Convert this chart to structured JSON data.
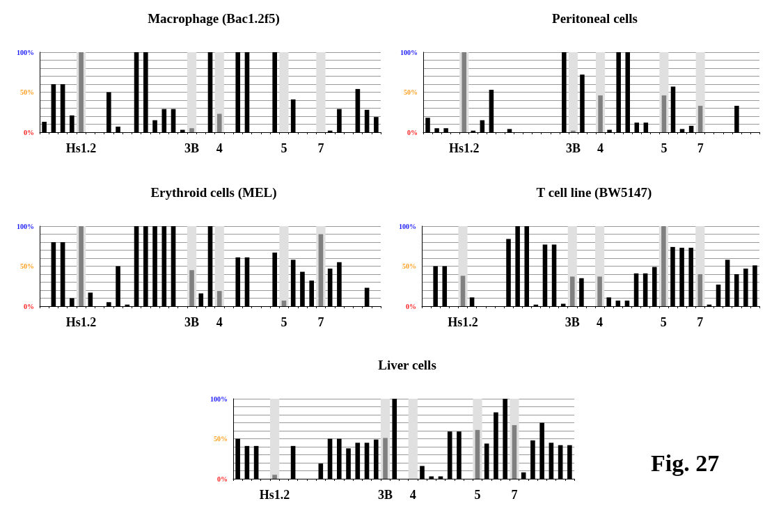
{
  "chart_data": [
    {
      "type": "bar",
      "title": "Macrophage (Bac1.2f5)",
      "categories": [
        null,
        null,
        null,
        null,
        "Hs1.2",
        null,
        null,
        null,
        null,
        null,
        null,
        null,
        null,
        null,
        null,
        null,
        "3B",
        null,
        null,
        "4",
        null,
        null,
        null,
        null,
        null,
        null,
        "5",
        null,
        null,
        null,
        "7",
        null,
        null,
        null,
        null,
        null,
        null
      ],
      "values": [
        13,
        60,
        60,
        21,
        100,
        0,
        0,
        50,
        7,
        0,
        100,
        100,
        15,
        29,
        29,
        3,
        5,
        0,
        100,
        23,
        0,
        100,
        100,
        0,
        0,
        100,
        0,
        41,
        0,
        0,
        0,
        2,
        29,
        0,
        54,
        28,
        19
      ],
      "colors": [
        "#000000",
        "#000000",
        "#000000",
        "#000000",
        "#808080",
        "#000000",
        "#000000",
        "#000000",
        "#000000",
        "#000000",
        "#000000",
        "#000000",
        "#000000",
        "#000000",
        "#000000",
        "#000000",
        "#808080",
        "#000000",
        "#000000",
        "#808080",
        "#000000",
        "#000000",
        "#000000",
        "#000000",
        "#000000",
        "#000000",
        "#808080",
        "#000000",
        "#000000",
        "#000000",
        "#808080",
        "#000000",
        "#000000",
        "#000000",
        "#000000",
        "#000000",
        "#000000"
      ],
      "ylim": [
        0,
        100
      ],
      "yticks": [
        {
          "value": 0,
          "label": "0%"
        },
        {
          "value": 10,
          "label": null
        },
        {
          "value": 20,
          "label": null
        },
        {
          "value": 30,
          "label": null
        },
        {
          "value": 40,
          "label": null
        },
        {
          "value": 50,
          "label": "50%"
        },
        {
          "value": 60,
          "label": null
        },
        {
          "value": 70,
          "label": null
        },
        {
          "value": 80,
          "label": null
        },
        {
          "value": 90,
          "label": null
        },
        {
          "value": 100,
          "label": "100%"
        }
      ],
      "grid": "y",
      "bands": [
        {
          "axis": "x",
          "from": "Hs1.2",
          "to": "Hs1.2",
          "color": "#e0e0e0"
        },
        {
          "axis": "x",
          "from": "3B",
          "to": "3B",
          "color": "#e0e0e0"
        },
        {
          "axis": "x",
          "from": "4",
          "to": "4",
          "color": "#e0e0e0"
        },
        {
          "axis": "x",
          "from": "5",
          "to": "5",
          "color": "#e0e0e0"
        },
        {
          "axis": "x",
          "from": "7",
          "to": "7",
          "color": "#e0e0e0"
        }
      ]
    },
    {
      "type": "bar",
      "title": "Peritoneal cells",
      "categories": [
        null,
        null,
        null,
        null,
        "Hs1.2",
        null,
        null,
        null,
        null,
        null,
        null,
        null,
        null,
        null,
        null,
        null,
        "3B",
        null,
        null,
        "4",
        null,
        null,
        null,
        null,
        null,
        null,
        "5",
        null,
        null,
        null,
        "7",
        null,
        null,
        null,
        null,
        null,
        null
      ],
      "values": [
        18,
        5,
        5,
        0,
        100,
        2,
        15,
        53,
        0,
        4,
        0,
        0,
        0,
        0,
        0,
        100,
        2,
        72,
        0,
        46,
        3,
        100,
        100,
        12,
        12,
        0,
        46,
        57,
        4,
        8,
        33,
        0,
        0,
        0,
        33,
        0,
        0
      ],
      "colors": [
        "#000000",
        "#000000",
        "#000000",
        "#000000",
        "#808080",
        "#000000",
        "#000000",
        "#000000",
        "#000000",
        "#000000",
        "#000000",
        "#000000",
        "#000000",
        "#000000",
        "#000000",
        "#000000",
        "#808080",
        "#000000",
        "#000000",
        "#808080",
        "#000000",
        "#000000",
        "#000000",
        "#000000",
        "#000000",
        "#000000",
        "#808080",
        "#000000",
        "#000000",
        "#000000",
        "#808080",
        "#000000",
        "#000000",
        "#000000",
        "#000000",
        "#000000",
        "#000000"
      ],
      "ylim": [
        0,
        100
      ],
      "yticks": [
        {
          "value": 0,
          "label": "0%"
        },
        {
          "value": 10,
          "label": null
        },
        {
          "value": 20,
          "label": null
        },
        {
          "value": 30,
          "label": null
        },
        {
          "value": 40,
          "label": null
        },
        {
          "value": 50,
          "label": "50%"
        },
        {
          "value": 60,
          "label": null
        },
        {
          "value": 70,
          "label": null
        },
        {
          "value": 80,
          "label": null
        },
        {
          "value": 90,
          "label": null
        },
        {
          "value": 100,
          "label": "100%"
        }
      ],
      "grid": "y",
      "bands": [
        {
          "axis": "x",
          "from": "Hs1.2",
          "to": "Hs1.2",
          "color": "#e0e0e0"
        },
        {
          "axis": "x",
          "from": "3B",
          "to": "3B",
          "color": "#e0e0e0"
        },
        {
          "axis": "x",
          "from": "4",
          "to": "4",
          "color": "#e0e0e0"
        },
        {
          "axis": "x",
          "from": "5",
          "to": "5",
          "color": "#e0e0e0"
        },
        {
          "axis": "x",
          "from": "7",
          "to": "7",
          "color": "#e0e0e0"
        }
      ]
    },
    {
      "type": "bar",
      "title": "Erythroid cells (MEL)",
      "categories": [
        null,
        null,
        null,
        null,
        "Hs1.2",
        null,
        null,
        null,
        null,
        null,
        null,
        null,
        null,
        null,
        null,
        null,
        "3B",
        null,
        null,
        "4",
        null,
        null,
        null,
        null,
        null,
        null,
        "5",
        null,
        null,
        null,
        "7",
        null,
        null,
        null,
        null,
        null,
        null
      ],
      "values": [
        0,
        80,
        80,
        10,
        100,
        17,
        0,
        5,
        50,
        2,
        100,
        100,
        100,
        100,
        100,
        0,
        45,
        16,
        100,
        19,
        0,
        61,
        61,
        0,
        0,
        67,
        7,
        58,
        43,
        32,
        90,
        47,
        55,
        0,
        0,
        23,
        0
      ],
      "colors": [
        "#000000",
        "#000000",
        "#000000",
        "#000000",
        "#808080",
        "#000000",
        "#000000",
        "#000000",
        "#000000",
        "#000000",
        "#000000",
        "#000000",
        "#000000",
        "#000000",
        "#000000",
        "#000000",
        "#808080",
        "#000000",
        "#000000",
        "#808080",
        "#000000",
        "#000000",
        "#000000",
        "#000000",
        "#000000",
        "#000000",
        "#808080",
        "#000000",
        "#000000",
        "#000000",
        "#808080",
        "#000000",
        "#000000",
        "#000000",
        "#000000",
        "#000000",
        "#000000"
      ],
      "ylim": [
        0,
        100
      ],
      "yticks": [
        {
          "value": 0,
          "label": "0%"
        },
        {
          "value": 10,
          "label": null
        },
        {
          "value": 20,
          "label": null
        },
        {
          "value": 30,
          "label": null
        },
        {
          "value": 40,
          "label": null
        },
        {
          "value": 50,
          "label": "50%"
        },
        {
          "value": 60,
          "label": null
        },
        {
          "value": 70,
          "label": null
        },
        {
          "value": 80,
          "label": null
        },
        {
          "value": 90,
          "label": null
        },
        {
          "value": 100,
          "label": "100%"
        }
      ],
      "grid": "y",
      "bands": [
        {
          "axis": "x",
          "from": "Hs1.2",
          "to": "Hs1.2",
          "color": "#e0e0e0"
        },
        {
          "axis": "x",
          "from": "3B",
          "to": "3B",
          "color": "#e0e0e0"
        },
        {
          "axis": "x",
          "from": "4",
          "to": "4",
          "color": "#e0e0e0"
        },
        {
          "axis": "x",
          "from": "5",
          "to": "5",
          "color": "#e0e0e0"
        },
        {
          "axis": "x",
          "from": "7",
          "to": "7",
          "color": "#e0e0e0"
        }
      ]
    },
    {
      "type": "bar",
      "title": "T cell line (BW5147)",
      "categories": [
        null,
        null,
        null,
        null,
        "Hs1.2",
        null,
        null,
        null,
        null,
        null,
        null,
        null,
        null,
        null,
        null,
        null,
        "3B",
        null,
        null,
        "4",
        null,
        null,
        null,
        null,
        null,
        null,
        "5",
        null,
        null,
        null,
        "7",
        null,
        null,
        null,
        null,
        null,
        null
      ],
      "values": [
        0,
        50,
        50,
        0,
        38,
        11,
        0,
        0,
        0,
        84,
        100,
        100,
        2,
        77,
        77,
        3,
        37,
        35,
        0,
        37,
        11,
        7,
        7,
        41,
        41,
        49,
        100,
        74,
        73,
        73,
        40,
        2,
        27,
        58,
        40,
        47,
        51
      ],
      "colors": [
        "#000000",
        "#000000",
        "#000000",
        "#000000",
        "#808080",
        "#000000",
        "#000000",
        "#000000",
        "#000000",
        "#000000",
        "#000000",
        "#000000",
        "#000000",
        "#000000",
        "#000000",
        "#000000",
        "#808080",
        "#000000",
        "#000000",
        "#808080",
        "#000000",
        "#000000",
        "#000000",
        "#000000",
        "#000000",
        "#000000",
        "#808080",
        "#000000",
        "#000000",
        "#000000",
        "#808080",
        "#000000",
        "#000000",
        "#000000",
        "#000000",
        "#000000",
        "#000000"
      ],
      "ylim": [
        0,
        100
      ],
      "yticks": [
        {
          "value": 0,
          "label": "0%"
        },
        {
          "value": 10,
          "label": null
        },
        {
          "value": 20,
          "label": null
        },
        {
          "value": 30,
          "label": null
        },
        {
          "value": 40,
          "label": null
        },
        {
          "value": 50,
          "label": "50%"
        },
        {
          "value": 60,
          "label": null
        },
        {
          "value": 70,
          "label": null
        },
        {
          "value": 80,
          "label": null
        },
        {
          "value": 90,
          "label": null
        },
        {
          "value": 100,
          "label": "100%"
        }
      ],
      "grid": "y",
      "bands": [
        {
          "axis": "x",
          "from": "Hs1.2",
          "to": "Hs1.2",
          "color": "#e0e0e0"
        },
        {
          "axis": "x",
          "from": "3B",
          "to": "3B",
          "color": "#e0e0e0"
        },
        {
          "axis": "x",
          "from": "4",
          "to": "4",
          "color": "#e0e0e0"
        },
        {
          "axis": "x",
          "from": "5",
          "to": "5",
          "color": "#e0e0e0"
        },
        {
          "axis": "x",
          "from": "7",
          "to": "7",
          "color": "#e0e0e0"
        }
      ]
    },
    {
      "type": "bar",
      "title": "Liver cells",
      "categories": [
        null,
        null,
        null,
        null,
        "Hs1.2",
        null,
        null,
        null,
        null,
        null,
        null,
        null,
        null,
        null,
        null,
        null,
        "3B",
        null,
        null,
        "4",
        null,
        null,
        null,
        null,
        null,
        null,
        "5",
        null,
        null,
        null,
        "7",
        null,
        null,
        null,
        null,
        null,
        null
      ],
      "values": [
        50,
        41,
        41,
        0,
        5,
        0,
        41,
        0,
        0,
        19,
        50,
        50,
        38,
        45,
        45,
        49,
        51,
        100,
        0,
        0,
        16,
        3,
        3,
        59,
        59,
        0,
        61,
        44,
        83,
        100,
        67,
        8,
        48,
        70,
        45,
        42,
        42
      ],
      "colors": [
        "#000000",
        "#000000",
        "#000000",
        "#000000",
        "#808080",
        "#000000",
        "#000000",
        "#000000",
        "#000000",
        "#000000",
        "#000000",
        "#000000",
        "#000000",
        "#000000",
        "#000000",
        "#000000",
        "#808080",
        "#000000",
        "#000000",
        "#808080",
        "#000000",
        "#000000",
        "#000000",
        "#000000",
        "#000000",
        "#000000",
        "#808080",
        "#000000",
        "#000000",
        "#000000",
        "#808080",
        "#000000",
        "#000000",
        "#000000",
        "#000000",
        "#000000",
        "#000000"
      ],
      "ylim": [
        0,
        100
      ],
      "yticks": [
        {
          "value": 0,
          "label": "0%"
        },
        {
          "value": 10,
          "label": null
        },
        {
          "value": 20,
          "label": null
        },
        {
          "value": 30,
          "label": null
        },
        {
          "value": 40,
          "label": null
        },
        {
          "value": 50,
          "label": "50%"
        },
        {
          "value": 60,
          "label": null
        },
        {
          "value": 70,
          "label": null
        },
        {
          "value": 80,
          "label": null
        },
        {
          "value": 90,
          "label": null
        },
        {
          "value": 100,
          "label": "100%"
        }
      ],
      "grid": "y",
      "bands": [
        {
          "axis": "x",
          "from": "Hs1.2",
          "to": "Hs1.2",
          "color": "#e0e0e0"
        },
        {
          "axis": "x",
          "from": "3B",
          "to": "3B",
          "color": "#e0e0e0"
        },
        {
          "axis": "x",
          "from": "4",
          "to": "4",
          "color": "#e0e0e0"
        },
        {
          "axis": "x",
          "from": "5",
          "to": "5",
          "color": "#e0e0e0"
        },
        {
          "axis": "x",
          "from": "7",
          "to": "7",
          "color": "#e0e0e0"
        }
      ],
      "annotations": [
        "Fig. 27"
      ]
    }
  ]
}
